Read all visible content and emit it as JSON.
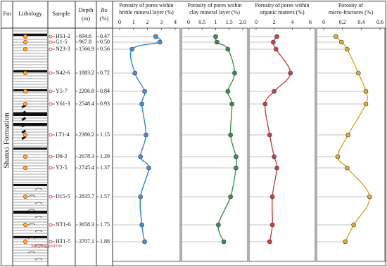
{
  "formation": "Shanxi Formation",
  "headers": {
    "fm": "Fm",
    "lithology": "Lithology",
    "sample": "Sample",
    "depth": "Depth",
    "depth_unit": "(m)",
    "ro": "Ro",
    "ro_unit": "(%)"
  },
  "legend_note": "Sampling position",
  "samples": [
    {
      "name": "HS1-2",
      "depth": "694.6",
      "ro": "0.47"
    },
    {
      "name": "G1-5",
      "depth": "967.8",
      "ro": "0.50"
    },
    {
      "name": "N23-3",
      "depth": "1566.9",
      "ro": "0.56"
    },
    {
      "name": "N42-6",
      "depth": "1883.2",
      "ro": "0.72"
    },
    {
      "name": "Y5-7",
      "depth": "2206.8",
      "ro": "0.84"
    },
    {
      "name": "Y61-3",
      "depth": "2548.4",
      "ro": "0.93"
    },
    {
      "name": "LT1-4",
      "depth": "2386.2",
      "ro": "1.15"
    },
    {
      "name": "D8-2",
      "depth": "2678.3",
      "ro": "1.29"
    },
    {
      "name": "Y2-5",
      "depth": "2745.4",
      "ro": "1.37"
    },
    {
      "name": "D15-5",
      "depth": "2835.7",
      "ro": "1.57"
    },
    {
      "name": "NT1-6",
      "depth": "3658.3",
      "ro": "1.75"
    },
    {
      "name": "HT1-5",
      "depth": "3707.1",
      "ro": "1.88"
    }
  ],
  "chart_data": [
    {
      "type": "line",
      "title": [
        "Porosity of pores within",
        "brittle mineral layer (%)"
      ],
      "color": "#1a7fd4",
      "marker_color": "#4a8fd8",
      "values": [
        2.6,
        2.9,
        0.9,
        1.1,
        1.8,
        1.6,
        1.9,
        1.5,
        2.1,
        1.5,
        1.6,
        1.8
      ],
      "xlim": [
        0,
        4
      ],
      "xticks": [
        0,
        1,
        2,
        3,
        4
      ]
    },
    {
      "type": "line",
      "title": [
        "Porosity of pores within",
        "clay mineral layer (%)"
      ],
      "color": "#2e8b3e",
      "marker_color": "#3d8f45",
      "values": [
        1.0,
        1.05,
        1.45,
        1.7,
        1.45,
        1.6,
        1.55,
        1.75,
        1.75,
        1.55,
        1.1,
        1.3
      ],
      "xlim": [
        0,
        2
      ],
      "xticks": [
        0,
        0.5,
        1,
        1.5,
        {
          "value": 2,
          "label": "2.0"
        }
      ]
    },
    {
      "type": "line",
      "title": [
        "Porosity of pores within",
        "organic matters (%)"
      ],
      "color": "#c83232",
      "marker_color": "#c84444",
      "values": [
        2.3,
        1.9,
        2.2,
        3.8,
        2.0,
        1.0,
        1.5,
        2.0,
        2.3,
        1.8,
        1.8,
        1.5
      ],
      "xlim": [
        0,
        6
      ],
      "xticks": [
        0,
        2,
        4,
        6
      ]
    },
    {
      "type": "line",
      "title": [
        "Porosity of",
        "micro-fractures (%)"
      ],
      "color": "#d4a017",
      "marker_color": "#e0b030",
      "values": [
        0.13,
        0.19,
        0.25,
        0.37,
        0.45,
        0.45,
        0.26,
        0.15,
        0.25,
        0.49,
        0.32,
        0.23
      ],
      "xlim": [
        0,
        0.6
      ],
      "xticks": [
        0,
        0.2,
        0.4,
        0.6
      ]
    }
  ]
}
